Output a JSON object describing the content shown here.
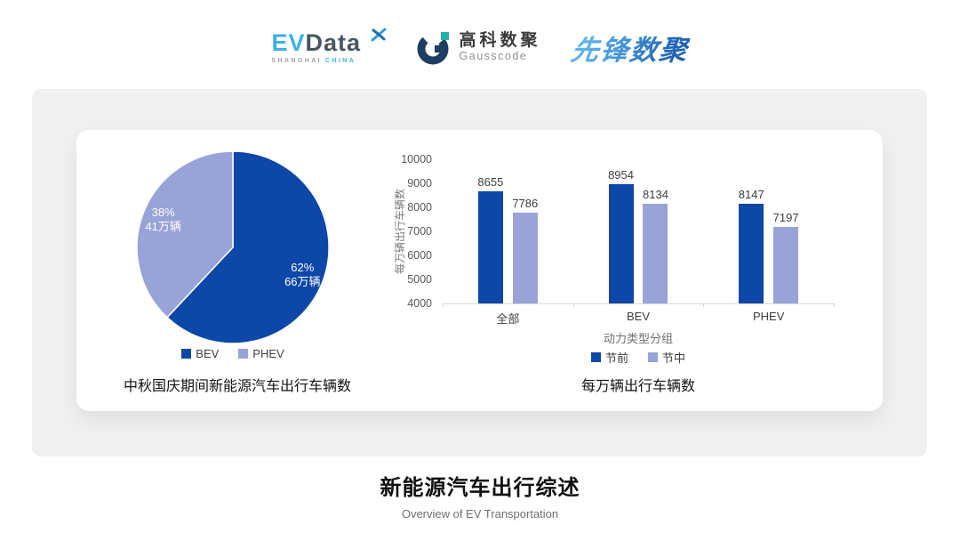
{
  "header": {
    "evdata": {
      "name_part1": "EV",
      "name_part2": "Data",
      "subtext_left": "SHANGHAI",
      "subtext_right": "CHINA"
    },
    "gausscode": {
      "name_cn": "高科数聚",
      "name_en": "Gausscode"
    },
    "pioneer": {
      "name_cn": "先锋数聚"
    }
  },
  "chart_data": [
    {
      "type": "pie",
      "title": "中秋国庆期间新能源汽车出行车辆数",
      "legend_position": "bottom",
      "start_angle_deg": 0,
      "slices": [
        {
          "label": "BEV",
          "percent": 62,
          "value_label": "66万辆",
          "color": "#0d47a8"
        },
        {
          "label": "PHEV",
          "percent": 38,
          "value_label": "41万辆",
          "color": "#98a3d7"
        }
      ]
    },
    {
      "type": "bar",
      "title": "每万辆出行车辆数",
      "xlabel": "动力类型分组",
      "ylabel": "每万辆出行车辆数",
      "categories": [
        "全部",
        "BEV",
        "PHEV"
      ],
      "series": [
        {
          "name": "节前",
          "color": "#0d47a8",
          "values": [
            8655,
            8954,
            8147
          ]
        },
        {
          "name": "节中",
          "color": "#98a3d7",
          "values": [
            7786,
            8134,
            7197
          ]
        }
      ],
      "ylim": [
        4000,
        10000
      ],
      "ytick_step": 1000,
      "grid": false,
      "legend_position": "bottom"
    }
  ],
  "footer": {
    "title": "新能源汽车出行综述",
    "subtitle": "Overview of EV Transportation"
  },
  "colors": {
    "accent_dark": "#0d47a8",
    "accent_light": "#98a3d7",
    "panel_bg": "#f0f0f1",
    "card_bg": "#ffffff"
  }
}
